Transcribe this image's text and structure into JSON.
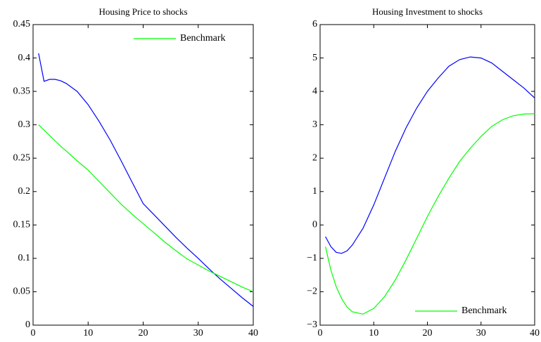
{
  "chart_data": [
    {
      "type": "line",
      "title": "Housing Price to shocks",
      "x": [
        1,
        2,
        3,
        4,
        5,
        6,
        8,
        10,
        12,
        14,
        16,
        18,
        20,
        22,
        24,
        26,
        28,
        30,
        32,
        34,
        36,
        38,
        40
      ],
      "series": [
        {
          "color": "#0000ff",
          "values": [
            0.407,
            0.365,
            0.368,
            0.368,
            0.366,
            0.362,
            0.35,
            0.33,
            0.305,
            0.277,
            0.246,
            0.214,
            0.182,
            0.165,
            0.148,
            0.131,
            0.115,
            0.1,
            0.084,
            0.069,
            0.055,
            0.041,
            0.028
          ]
        },
        {
          "name": "Benchmark",
          "color": "#00ff00",
          "values": [
            0.3,
            0.292,
            0.284,
            0.276,
            0.268,
            0.261,
            0.246,
            0.232,
            0.215,
            0.198,
            0.181,
            0.166,
            0.152,
            0.138,
            0.124,
            0.111,
            0.099,
            0.09,
            0.081,
            0.073,
            0.065,
            0.057,
            0.05
          ]
        }
      ],
      "xlim": [
        0,
        40
      ],
      "xticks": [
        0,
        10,
        20,
        30,
        40
      ],
      "ylim": [
        0,
        0.45
      ],
      "yticks": [
        0,
        0.05,
        0.1,
        0.15,
        0.2,
        0.25,
        0.3,
        0.35,
        0.4,
        0.45
      ],
      "legend": "upper right"
    },
    {
      "type": "line",
      "title": "Housing Investment to shocks",
      "x": [
        1,
        2,
        3,
        4,
        5,
        6,
        8,
        10,
        12,
        14,
        16,
        18,
        20,
        22,
        24,
        26,
        28,
        30,
        32,
        34,
        36,
        38,
        40
      ],
      "series": [
        {
          "color": "#0000ff",
          "values": [
            -0.35,
            -0.65,
            -0.82,
            -0.85,
            -0.78,
            -0.6,
            -0.1,
            0.6,
            1.4,
            2.2,
            2.9,
            3.5,
            4.0,
            4.4,
            4.75,
            4.95,
            5.03,
            5.0,
            4.85,
            4.6,
            4.35,
            4.1,
            3.8
          ]
        },
        {
          "name": "Benchmark",
          "color": "#00ff00",
          "values": [
            -0.65,
            -1.35,
            -1.85,
            -2.2,
            -2.45,
            -2.6,
            -2.67,
            -2.5,
            -2.15,
            -1.65,
            -1.05,
            -0.4,
            0.25,
            0.85,
            1.4,
            1.9,
            2.3,
            2.65,
            2.95,
            3.15,
            3.27,
            3.32,
            3.33
          ]
        }
      ],
      "xlim": [
        0,
        40
      ],
      "xticks": [
        0,
        10,
        20,
        30,
        40
      ],
      "ylim": [
        -3,
        6
      ],
      "yticks": [
        {
          "value": -3,
          "label": "−3"
        },
        {
          "value": -2,
          "label": "−2"
        },
        {
          "value": -1,
          "label": "−1"
        },
        0,
        1,
        2,
        3,
        4,
        5,
        6
      ],
      "legend": "lower right"
    }
  ]
}
